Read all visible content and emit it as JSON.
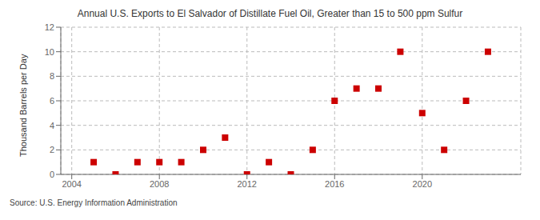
{
  "chart_data": {
    "type": "scatter",
    "title": "Annual U.S. Exports to El Salvador of Distillate Fuel Oil, Greater than 15 to 500 ppm Sulfur",
    "y_label": "Thousand Barrels per Day",
    "annotations": [
      "Source: U.S. Energy Information Administration"
    ],
    "x": [
      2005,
      2006,
      2007,
      2008,
      2009,
      2010,
      2011,
      2012,
      2013,
      2014,
      2015,
      2016,
      2017,
      2018,
      2019,
      2020,
      2021,
      2022,
      2023
    ],
    "values": [
      1,
      0,
      1,
      1,
      1,
      2,
      3,
      0,
      1,
      0,
      2,
      6,
      7,
      7,
      10,
      5,
      2,
      6,
      10
    ],
    "xlim": [
      2003.5,
      2024.5
    ],
    "ylim": [
      0,
      12
    ],
    "xticks": [
      2004,
      2008,
      2012,
      2016,
      2020
    ],
    "yticks": [
      0,
      2,
      4,
      6,
      8,
      10,
      12
    ],
    "color": "#cc0000",
    "marker": "square",
    "grid": true
  }
}
